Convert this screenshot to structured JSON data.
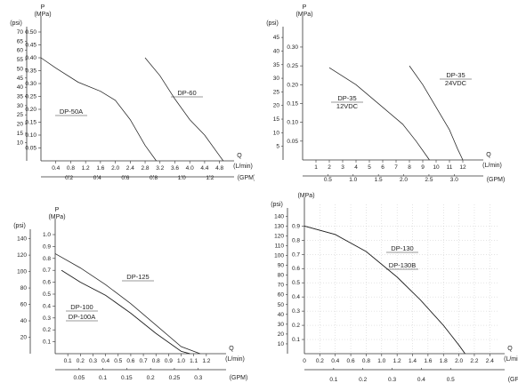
{
  "chart_data": [
    {
      "type": "line",
      "title": "",
      "grid": false,
      "y_label_symbol": "P",
      "y_inner_unit": "MPa",
      "y_outer_unit": "psi",
      "x_label_symbol": "Q",
      "x_top_unit": "L/min",
      "x_bottom_unit": "GPM",
      "x_top_ticks": [
        "0.4",
        "0.8",
        "1.2",
        "1.6",
        "2.0",
        "2.4",
        "2.8",
        "3.2",
        "3.6",
        "4.0",
        "4.4",
        "4.8"
      ],
      "x_bottom_ticks": [
        "0.2",
        "0.4",
        "0.6",
        "0.8",
        "1.0",
        "1.2"
      ],
      "y_inner_ticks": [
        "0.05",
        "0.10",
        "0.15",
        "0.20",
        "0.25",
        "0.30",
        "0.35",
        "0.40",
        "0.45",
        "0.50"
      ],
      "y_outer_ticks": [
        "10",
        "15",
        "20",
        "25",
        "30",
        "35",
        "40",
        "45",
        "50",
        "55",
        "60",
        "65",
        "70"
      ],
      "xlim": [
        0,
        5.0
      ],
      "ylim": [
        0,
        0.5
      ],
      "series": [
        {
          "name": "DP-50A",
          "x": [
            0,
            0.4,
            1.0,
            1.6,
            2.0,
            2.4,
            2.8,
            3.1
          ],
          "y": [
            0.4,
            0.36,
            0.305,
            0.27,
            0.235,
            0.16,
            0.06,
            0.0
          ]
        },
        {
          "name": "DP-60",
          "x": [
            2.8,
            3.2,
            3.6,
            4.0,
            4.4,
            4.8,
            4.9
          ],
          "y": [
            0.4,
            0.33,
            0.24,
            0.16,
            0.1,
            0.02,
            0.0
          ]
        }
      ]
    },
    {
      "type": "line",
      "title": "",
      "grid": false,
      "y_label_symbol": "P",
      "y_inner_unit": "MPa",
      "y_outer_unit": "psi",
      "x_label_symbol": "Q",
      "x_top_unit": "L/min",
      "x_bottom_unit": "GPM",
      "x_top_ticks": [
        "1",
        "2",
        "3",
        "4",
        "5",
        "6",
        "7",
        "8",
        "9",
        "10",
        "11",
        "12"
      ],
      "x_bottom_ticks": [
        "0.5",
        "1.0",
        "1.5",
        "2.0",
        "2.5",
        "3.0"
      ],
      "y_inner_ticks": [
        "0.05",
        "0.10",
        "0.15",
        "0.20",
        "0.25",
        "0.30"
      ],
      "y_outer_ticks": [
        "5",
        "10",
        "15",
        "20",
        "25",
        "30",
        "35",
        "40",
        "45"
      ],
      "xlim": [
        0,
        13.0
      ],
      "ylim": [
        0,
        0.34
      ],
      "series": [
        {
          "name": "DP-35",
          "label_extra": "12VDC",
          "x": [
            2.0,
            4.0,
            6.0,
            7.5,
            8.5,
            9.2,
            9.5
          ],
          "y": [
            0.245,
            0.2,
            0.14,
            0.095,
            0.05,
            0.015,
            0.0
          ]
        },
        {
          "name": "DP-35",
          "label_extra": "24VDC",
          "x": [
            8.0,
            9.0,
            10.0,
            11.0,
            11.6,
            12.0
          ],
          "y": [
            0.25,
            0.2,
            0.14,
            0.08,
            0.03,
            0.0
          ]
        }
      ]
    },
    {
      "type": "line",
      "title": "",
      "grid": false,
      "y_label_symbol": "P",
      "y_inner_unit": "MPa",
      "y_outer_unit": "psi",
      "x_label_symbol": "Q",
      "x_top_unit": "L/min",
      "x_bottom_unit": "GPM",
      "x_top_ticks": [
        "0.1",
        "0.2",
        "0.3",
        "0.4",
        "0.5",
        "0.6",
        "0.7",
        "0.8",
        "0.9",
        "1.0",
        "1.1",
        "1.2"
      ],
      "x_bottom_ticks": [
        "0.05",
        "0.1",
        "0.15",
        "0.2",
        "0.25",
        "0.3"
      ],
      "y_inner_ticks": [
        "0.1",
        "0.2",
        "0.3",
        "0.4",
        "0.5",
        "0.6",
        "0.7",
        "0.8",
        "0.9",
        "1.0"
      ],
      "y_outer_ticks": [
        "20",
        "40",
        "60",
        "80",
        "100",
        "120",
        "140"
      ],
      "xlim": [
        0,
        1.3
      ],
      "ylim": [
        0,
        1.0
      ],
      "series": [
        {
          "name": "DP-125",
          "x": [
            0.0,
            0.2,
            0.4,
            0.6,
            0.8,
            1.0,
            1.15
          ],
          "y": [
            0.84,
            0.72,
            0.58,
            0.42,
            0.24,
            0.06,
            0.0
          ]
        },
        {
          "name": "DP-100",
          "x": [
            0.05,
            0.2,
            0.4,
            0.6,
            0.8,
            1.0,
            1.07
          ],
          "y": [
            0.7,
            0.6,
            0.49,
            0.34,
            0.17,
            0.02,
            0.0
          ]
        },
        {
          "name": "DP-100A",
          "x": [
            0.05,
            0.2,
            0.4,
            0.6,
            0.8,
            1.0,
            1.07
          ],
          "y": [
            0.7,
            0.6,
            0.49,
            0.34,
            0.17,
            0.02,
            0.0
          ]
        }
      ]
    },
    {
      "type": "line",
      "title": "",
      "grid": true,
      "y_label_symbol": "P",
      "y_inner_unit": "MPa",
      "y_outer_unit": "psi",
      "x_label_symbol": "Q",
      "x_top_unit": "L/min",
      "x_bottom_unit": "GPM",
      "x_zero_label": "0",
      "x_top_ticks": [
        "0.2",
        "0.4",
        "0.6",
        "0.8",
        "1.0",
        "1.2",
        "1.4",
        "1.6",
        "1.8",
        "2.0",
        "2.2",
        "2.4"
      ],
      "x_bottom_ticks": [
        "0.1",
        "0.2",
        "0.3",
        "0.4",
        "0.5"
      ],
      "y_inner_ticks": [
        "0.1",
        "0.2",
        "0.3",
        "0.4",
        "0.5",
        "0.6",
        "0.7",
        "0.8",
        "0.9"
      ],
      "y_outer_ticks": [
        "10",
        "20",
        "30",
        "40",
        "50",
        "60",
        "70",
        "80",
        "90",
        "100",
        "110",
        "120",
        "130",
        "140"
      ],
      "xlim": [
        0,
        2.5
      ],
      "ylim": [
        0,
        0.99
      ],
      "series": [
        {
          "name": "DP-130",
          "x": [
            0,
            0.4,
            0.8,
            1.2,
            1.5,
            1.8,
            2.0,
            2.08
          ],
          "y": [
            0.9,
            0.84,
            0.72,
            0.54,
            0.38,
            0.2,
            0.06,
            0.0
          ]
        },
        {
          "name": "DP-130B",
          "x": [
            0,
            0.4,
            0.8,
            1.2,
            1.5,
            1.8,
            2.0,
            2.08
          ],
          "y": [
            0.9,
            0.84,
            0.72,
            0.54,
            0.38,
            0.2,
            0.06,
            0.0
          ]
        }
      ]
    }
  ]
}
